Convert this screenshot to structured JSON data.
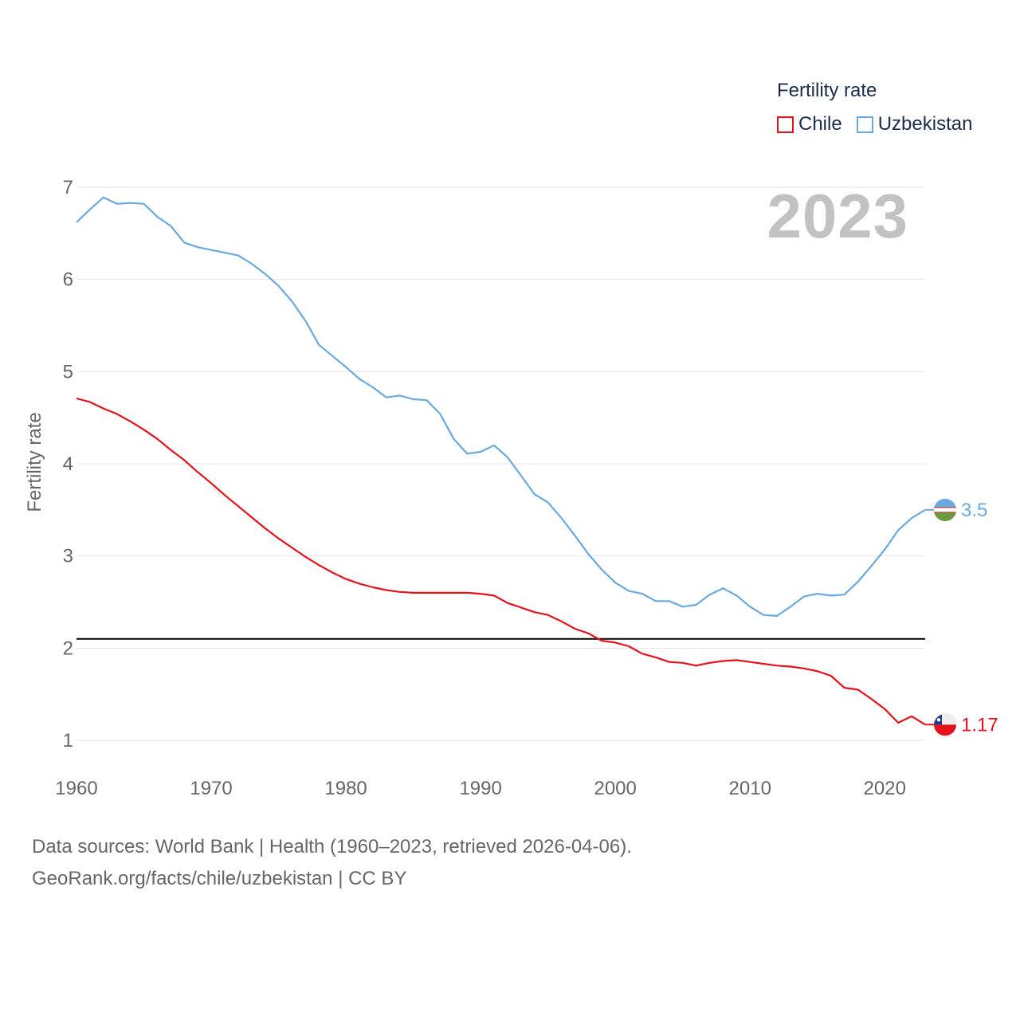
{
  "legend": {
    "title": "Fertility rate",
    "items": [
      {
        "name": "Chile",
        "color": "#e3121b"
      },
      {
        "name": "Uzbekistan",
        "color": "#6aa8e0"
      }
    ]
  },
  "year_label": "2023",
  "footer": {
    "line1": "Data sources: World Bank | Health (1960–2023, retrieved 2026-04-06).",
    "line2": "GeoRank.org/facts/chile/uzbekistan | CC BY"
  },
  "chart_data": {
    "type": "line",
    "title": "Fertility rate",
    "xlabel": "",
    "ylabel": "Fertility rate",
    "xlim": [
      1960,
      2023
    ],
    "ylim": [
      1,
      7
    ],
    "x_ticks": [
      1960,
      1970,
      1980,
      1990,
      2000,
      2010,
      2020
    ],
    "y_ticks": [
      1,
      2,
      3,
      4,
      5,
      6,
      7
    ],
    "grid": true,
    "reference_line": {
      "y": 2.1,
      "color": "#000000"
    },
    "x": [
      1960,
      1961,
      1962,
      1963,
      1964,
      1965,
      1966,
      1967,
      1968,
      1969,
      1970,
      1971,
      1972,
      1973,
      1974,
      1975,
      1976,
      1977,
      1978,
      1979,
      1980,
      1981,
      1982,
      1983,
      1984,
      1985,
      1986,
      1987,
      1988,
      1989,
      1990,
      1991,
      1992,
      1993,
      1994,
      1995,
      1996,
      1997,
      1998,
      1999,
      2000,
      2001,
      2002,
      2003,
      2004,
      2005,
      2006,
      2007,
      2008,
      2009,
      2010,
      2011,
      2012,
      2013,
      2014,
      2015,
      2016,
      2017,
      2018,
      2019,
      2020,
      2021,
      2022,
      2023
    ],
    "series": [
      {
        "name": "Uzbekistan",
        "color": "#6aa8e0",
        "end_label": "3.5",
        "values": [
          6.62,
          6.76,
          6.89,
          6.82,
          6.83,
          6.82,
          6.68,
          6.58,
          6.4,
          6.35,
          6.32,
          6.29,
          6.26,
          6.17,
          6.06,
          5.93,
          5.76,
          5.55,
          5.29,
          5.17,
          5.05,
          4.92,
          4.83,
          4.72,
          4.74,
          4.7,
          4.69,
          4.54,
          4.27,
          4.11,
          4.13,
          4.2,
          4.07,
          3.87,
          3.67,
          3.58,
          3.41,
          3.22,
          3.02,
          2.85,
          2.71,
          2.62,
          2.59,
          2.51,
          2.51,
          2.45,
          2.47,
          2.58,
          2.65,
          2.57,
          2.45,
          2.36,
          2.35,
          2.45,
          2.56,
          2.59,
          2.57,
          2.58,
          2.72,
          2.89,
          3.07,
          3.28,
          3.41,
          3.5
        ]
      },
      {
        "name": "Chile",
        "color": "#e3121b",
        "end_label": "1.17",
        "values": [
          4.71,
          4.67,
          4.6,
          4.54,
          4.46,
          4.37,
          4.27,
          4.15,
          4.04,
          3.91,
          3.79,
          3.66,
          3.54,
          3.42,
          3.3,
          3.19,
          3.09,
          2.99,
          2.9,
          2.82,
          2.75,
          2.7,
          2.66,
          2.63,
          2.61,
          2.6,
          2.6,
          2.6,
          2.6,
          2.6,
          2.59,
          2.57,
          2.49,
          2.44,
          2.39,
          2.36,
          2.29,
          2.21,
          2.16,
          2.08,
          2.06,
          2.02,
          1.94,
          1.9,
          1.85,
          1.84,
          1.81,
          1.84,
          1.86,
          1.87,
          1.85,
          1.83,
          1.81,
          1.8,
          1.78,
          1.75,
          1.7,
          1.57,
          1.55,
          1.45,
          1.34,
          1.19,
          1.26,
          1.17
        ]
      }
    ]
  }
}
